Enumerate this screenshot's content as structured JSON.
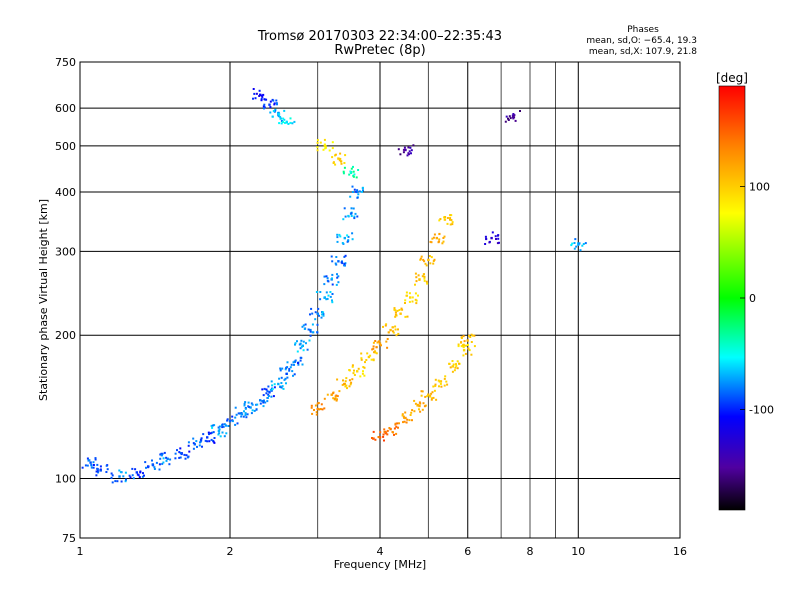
{
  "chart_data": {
    "type": "scatter",
    "title": "Tromsø 20170303 22:34:00–22:35:43",
    "subtitle": "RwPretec (8p)",
    "xlabel": "Frequency [MHz]",
    "ylabel": "Stationary phase Virtual Height [km]",
    "x_scale": "log",
    "y_scale": "log",
    "xlim": [
      1,
      16
    ],
    "ylim": [
      75,
      750
    ],
    "x_ticks": [
      1,
      2,
      4,
      6,
      8,
      10,
      16
    ],
    "y_ticks": [
      75,
      100,
      200,
      300,
      400,
      500,
      600,
      750
    ],
    "x_major_gridlines": [
      2,
      4,
      6,
      10
    ],
    "x_minor_gridlines": [
      3,
      5,
      7,
      8,
      9
    ],
    "y_gridlines": [
      100,
      200,
      300,
      400,
      500,
      600
    ],
    "grid": true,
    "phases_title": "Phases",
    "phases_stats": [
      "mean, sd,O: −65.4, 19.3",
      "mean, sd,X: 107.9, 21.8"
    ],
    "colorbar": {
      "label": "[deg]",
      "ticks": [
        100,
        0,
        -100
      ],
      "range": [
        -190,
        190
      ],
      "colors": [
        "#ff0000",
        "#ff8000",
        "#ffff00",
        "#00ff00",
        "#00ffff",
        "#0000ff",
        "#5000a0",
        "#000000"
      ]
    },
    "series": [
      {
        "description": "O-mode trace",
        "points": [
          [
            1.05,
            108,
            -90
          ],
          [
            1.1,
            104,
            -95
          ],
          [
            1.2,
            101,
            -80
          ],
          [
            1.3,
            103,
            -95
          ],
          [
            1.4,
            107,
            -90
          ],
          [
            1.5,
            110,
            -80
          ],
          [
            1.6,
            113,
            -100
          ],
          [
            1.7,
            118,
            -85
          ],
          [
            1.8,
            122,
            -95
          ],
          [
            1.9,
            126,
            -70
          ],
          [
            2.0,
            132,
            -85
          ],
          [
            2.1,
            137,
            -80
          ],
          [
            2.2,
            141,
            -75
          ],
          [
            2.3,
            146,
            -80
          ],
          [
            2.4,
            152,
            -90
          ],
          [
            2.5,
            158,
            -70
          ],
          [
            2.6,
            166,
            -80
          ],
          [
            2.7,
            176,
            -85
          ],
          [
            2.8,
            190,
            -70
          ],
          [
            2.9,
            205,
            -80
          ],
          [
            3.0,
            222,
            -75
          ],
          [
            3.1,
            240,
            -70
          ],
          [
            3.2,
            262,
            -80
          ],
          [
            3.3,
            286,
            -85
          ],
          [
            3.4,
            320,
            -70
          ],
          [
            3.5,
            360,
            -75
          ],
          [
            3.6,
            400,
            -80
          ]
        ]
      },
      {
        "description": "X-mode trace",
        "points": [
          [
            3.0,
            140,
            130
          ],
          [
            3.2,
            150,
            120
          ],
          [
            3.4,
            158,
            110
          ],
          [
            3.6,
            168,
            95
          ],
          [
            3.8,
            180,
            100
          ],
          [
            4.0,
            192,
            120
          ],
          [
            4.2,
            205,
            110
          ],
          [
            4.4,
            222,
            105
          ],
          [
            4.6,
            240,
            95
          ],
          [
            4.8,
            262,
            100
          ],
          [
            5.0,
            288,
            110
          ],
          [
            5.2,
            320,
            115
          ],
          [
            5.4,
            350,
            100
          ]
        ]
      },
      {
        "description": "Lower X-mode trace",
        "points": [
          [
            4.0,
            122,
            150
          ],
          [
            4.2,
            127,
            140
          ],
          [
            4.5,
            134,
            120
          ],
          [
            4.8,
            142,
            115
          ],
          [
            5.0,
            150,
            110
          ],
          [
            5.3,
            160,
            105
          ],
          [
            5.6,
            172,
            100
          ],
          [
            5.9,
            186,
            95
          ],
          [
            6.0,
            195,
            110
          ]
        ]
      },
      {
        "description": "Upper echoes",
        "points": [
          [
            2.3,
            640,
            -110
          ],
          [
            2.4,
            610,
            -95
          ],
          [
            2.5,
            580,
            -70
          ],
          [
            2.6,
            560,
            -60
          ],
          [
            3.1,
            500,
            85
          ],
          [
            3.3,
            470,
            100
          ],
          [
            3.5,
            440,
            -40
          ],
          [
            4.5,
            490,
            -150
          ],
          [
            6.7,
            320,
            -130
          ],
          [
            7.4,
            575,
            -150
          ],
          [
            10.0,
            310,
            -70
          ]
        ]
      }
    ]
  }
}
